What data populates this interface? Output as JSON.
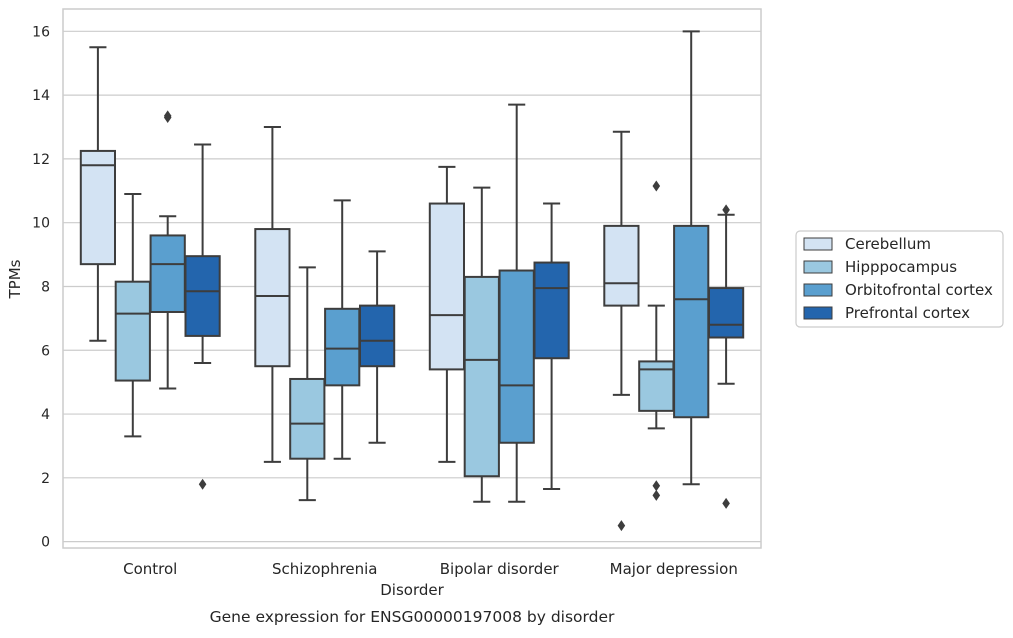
{
  "caption": "Gene expression for ENSG00000197008 by disorder",
  "chart_data": {
    "type": "boxplot",
    "title": "",
    "xlabel": "Disorder",
    "ylabel": "TPMs",
    "ylim": [
      -0.2,
      16.7
    ],
    "yticks": [
      0,
      2,
      4,
      6,
      8,
      10,
      12,
      14,
      16
    ],
    "grid": "horizontal",
    "legend_position": "right",
    "categories": [
      "Control",
      "Schizophrenia",
      "Bipolar disorder",
      "Major depression"
    ],
    "series": [
      {
        "name": "Cerebellum",
        "color": "#d3e3f3",
        "boxes": [
          {
            "min": 6.3,
            "q1": 8.7,
            "median": 11.8,
            "q3": 12.25,
            "max": 15.5,
            "outliers": []
          },
          {
            "min": 2.5,
            "q1": 5.5,
            "median": 7.7,
            "q3": 9.8,
            "max": 13.0,
            "outliers": []
          },
          {
            "min": 2.5,
            "q1": 5.4,
            "median": 7.1,
            "q3": 10.6,
            "max": 11.75,
            "outliers": []
          },
          {
            "min": 4.6,
            "q1": 7.4,
            "median": 8.1,
            "q3": 9.9,
            "max": 12.85,
            "outliers": [
              0.5
            ]
          }
        ]
      },
      {
        "name": "Hipppocampus",
        "color": "#9ac8e0",
        "boxes": [
          {
            "min": 3.3,
            "q1": 5.05,
            "median": 7.15,
            "q3": 8.15,
            "max": 10.9,
            "outliers": []
          },
          {
            "min": 1.3,
            "q1": 2.6,
            "median": 3.7,
            "q3": 5.1,
            "max": 8.6,
            "outliers": []
          },
          {
            "min": 1.25,
            "q1": 2.05,
            "median": 5.7,
            "q3": 8.3,
            "max": 11.1,
            "outliers": []
          },
          {
            "min": 3.55,
            "q1": 4.1,
            "median": 5.4,
            "q3": 5.65,
            "max": 7.4,
            "outliers": [
              11.15,
              1.75,
              1.45
            ]
          }
        ]
      },
      {
        "name": "Orbitofrontal cortex",
        "color": "#5a9fcf",
        "boxes": [
          {
            "min": 4.8,
            "q1": 7.2,
            "median": 8.7,
            "q3": 9.6,
            "max": 10.2,
            "outliers": [
              13.3,
              13.35
            ]
          },
          {
            "min": 2.6,
            "q1": 4.9,
            "median": 6.05,
            "q3": 7.3,
            "max": 10.7,
            "outliers": []
          },
          {
            "min": 1.25,
            "q1": 3.1,
            "median": 4.9,
            "q3": 8.5,
            "max": 13.7,
            "outliers": []
          },
          {
            "min": 1.8,
            "q1": 3.9,
            "median": 7.6,
            "q3": 9.9,
            "max": 16.0,
            "outliers": []
          }
        ]
      },
      {
        "name": "Prefrontal cortex",
        "color": "#2365ad",
        "boxes": [
          {
            "min": 5.6,
            "q1": 6.45,
            "median": 7.85,
            "q3": 8.95,
            "max": 12.45,
            "outliers": [
              1.8
            ]
          },
          {
            "min": 3.1,
            "q1": 5.5,
            "median": 6.3,
            "q3": 7.4,
            "max": 9.1,
            "outliers": []
          },
          {
            "min": 1.65,
            "q1": 5.75,
            "median": 7.95,
            "q3": 8.75,
            "max": 10.6,
            "outliers": []
          },
          {
            "min": 4.95,
            "q1": 6.4,
            "median": 6.8,
            "q3": 7.95,
            "max": 10.25,
            "outliers": [
              10.4,
              1.2
            ]
          }
        ]
      }
    ]
  }
}
